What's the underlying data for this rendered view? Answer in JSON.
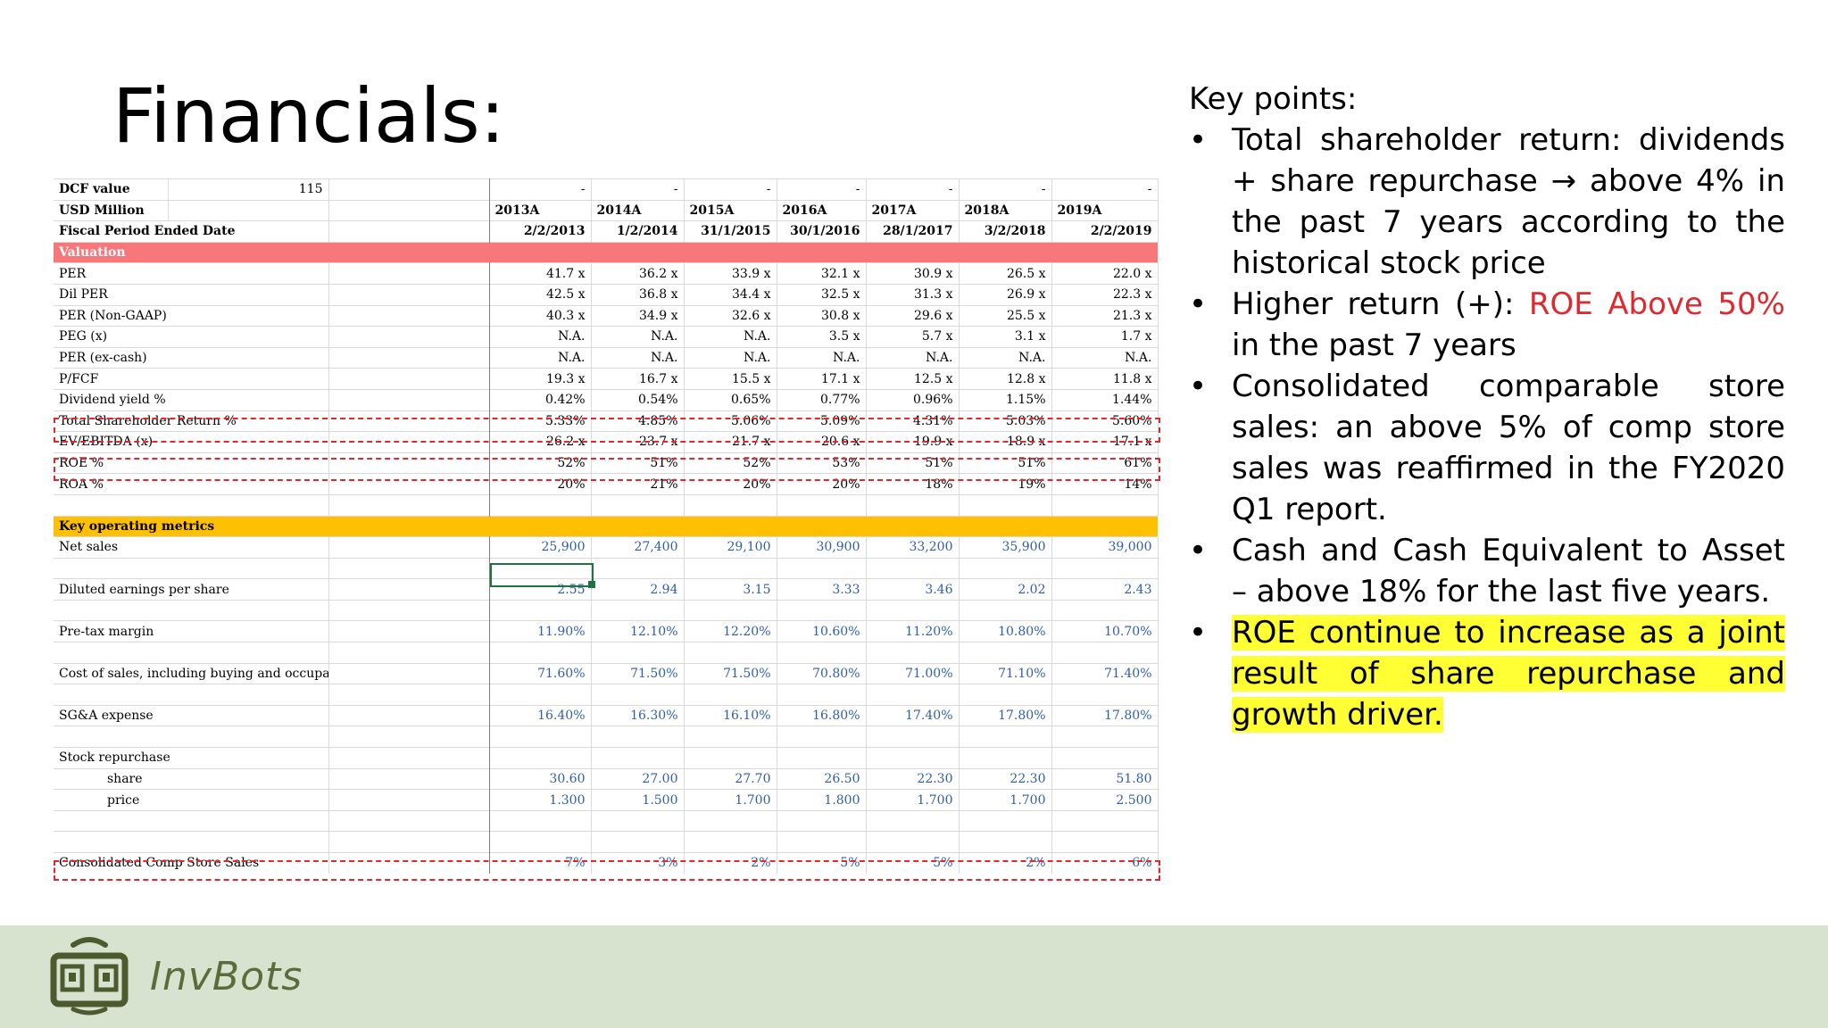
{
  "slide": {
    "title": "Financials:"
  },
  "sheet": {
    "years": [
      "2013A",
      "2014A",
      "2015A",
      "2016A",
      "2017A",
      "2018A",
      "2019A"
    ],
    "dates": [
      "2/2/2013",
      "1/2/2014",
      "31/1/2015",
      "30/1/2016",
      "28/1/2017",
      "3/2/2018",
      "2/2/2019"
    ],
    "dcf_label": "DCF value",
    "dcf_value": "115",
    "dash": "-",
    "usd_label": "USD Million",
    "period_label": "Fiscal Period Ended Date",
    "valuation_label": "Valuation",
    "valuation_rows": [
      {
        "label": "PER",
        "values": [
          "41.7 x",
          "36.2 x",
          "33.9 x",
          "32.1 x",
          "30.9 x",
          "26.5 x",
          "22.0 x"
        ]
      },
      {
        "label": "Dil PER",
        "values": [
          "42.5 x",
          "36.8 x",
          "34.4 x",
          "32.5 x",
          "31.3 x",
          "26.9 x",
          "22.3 x"
        ]
      },
      {
        "label": "PER (Non-GAAP)",
        "values": [
          "40.3 x",
          "34.9 x",
          "32.6 x",
          "30.8 x",
          "29.6 x",
          "25.5 x",
          "21.3 x"
        ]
      },
      {
        "label": "PEG (x)",
        "values": [
          "N.A.",
          "N.A.",
          "N.A.",
          "3.5 x",
          "5.7 x",
          "3.1 x",
          "1.7 x"
        ]
      },
      {
        "label": "PER (ex-cash)",
        "values": [
          "N.A.",
          "N.A.",
          "N.A.",
          "N.A.",
          "N.A.",
          "N.A.",
          "N.A."
        ]
      },
      {
        "label": "P/FCF",
        "values": [
          "19.3 x",
          "16.7 x",
          "15.5 x",
          "17.1 x",
          "12.5 x",
          "12.8 x",
          "11.8 x"
        ]
      },
      {
        "label": "Dividend yield %",
        "values": [
          "0.42%",
          "0.54%",
          "0.65%",
          "0.77%",
          "0.96%",
          "1.15%",
          "1.44%"
        ]
      },
      {
        "label": "Total Shareholder Return %",
        "values": [
          "5.33%",
          "4.85%",
          "5.06%",
          "5.09%",
          "4.31%",
          "5.03%",
          "5.60%"
        ]
      },
      {
        "label": "EV/EBITDA (x)",
        "values": [
          "26.2 x",
          "23.7 x",
          "21.7 x",
          "20.6 x",
          "19.9 x",
          "18.9 x",
          "17.1 x"
        ]
      },
      {
        "label": "ROE %",
        "values": [
          "52%",
          "51%",
          "52%",
          "53%",
          "51%",
          "51%",
          "61%"
        ]
      },
      {
        "label": "ROA %",
        "values": [
          "20%",
          "21%",
          "20%",
          "20%",
          "18%",
          "19%",
          "14%"
        ]
      }
    ],
    "metrics_label": "Key operating metrics",
    "net_sales": {
      "label": "Net sales",
      "values": [
        "25,900",
        "27,400",
        "29,100",
        "30,900",
        "33,200",
        "35,900",
        "39,000"
      ]
    },
    "eps": {
      "label": "Diluted earnings per share",
      "values": [
        "2.55",
        "2.94",
        "3.15",
        "3.33",
        "3.46",
        "2.02",
        "2.43"
      ]
    },
    "pretax": {
      "label": "Pre-tax margin",
      "values": [
        "11.90%",
        "12.10%",
        "12.20%",
        "10.60%",
        "11.20%",
        "10.80%",
        "10.70%"
      ]
    },
    "cos": {
      "label": "Cost of sales, including buying and occupancy costs",
      "values": [
        "71.60%",
        "71.50%",
        "71.50%",
        "70.80%",
        "71.00%",
        "71.10%",
        "71.40%"
      ]
    },
    "sga": {
      "label": "SG&A expense",
      "values": [
        "16.40%",
        "16.30%",
        "16.10%",
        "16.80%",
        "17.40%",
        "17.80%",
        "17.80%"
      ]
    },
    "repurchase_label": "Stock repurchase",
    "share": {
      "label": "share",
      "values": [
        "30.60",
        "27.00",
        "27.70",
        "26.50",
        "22.30",
        "22.30",
        "51.80"
      ]
    },
    "price": {
      "label": "price",
      "values": [
        "1.300",
        "1.500",
        "1.700",
        "1.800",
        "1.700",
        "1.700",
        "2.500"
      ]
    },
    "comp": {
      "label": "Consolidated Comp Store Sales",
      "values": [
        "7%",
        "3%",
        "2%",
        "5%",
        "5%",
        "2%",
        "6%"
      ]
    }
  },
  "key_points": {
    "heading": "Key points:",
    "bullet_char": "•",
    "p1": "Total shareholder return: dividends + share repurchase → above 4% in the past 7 years according to the historical stock price",
    "p2_before": "Higher return (+): ",
    "p2_red": "ROE Above 50%",
    "p2_after": " in the past 7 years",
    "p3": "Consolidated comparable store sales: an above 5% of comp store sales was reaffirmed in the FY2020 Q1 report.",
    "p4": "Cash and Cash Equivalent to Asset – above 18% for the last five years.",
    "p5": "ROE continue to increase as a joint result of share repurchase and growth driver.",
    "red_color": "#e0282e",
    "highlight_color": "#ffff33"
  },
  "footer": {
    "brand": "InvBots",
    "logo_icon": "invbots-robot-icon"
  }
}
